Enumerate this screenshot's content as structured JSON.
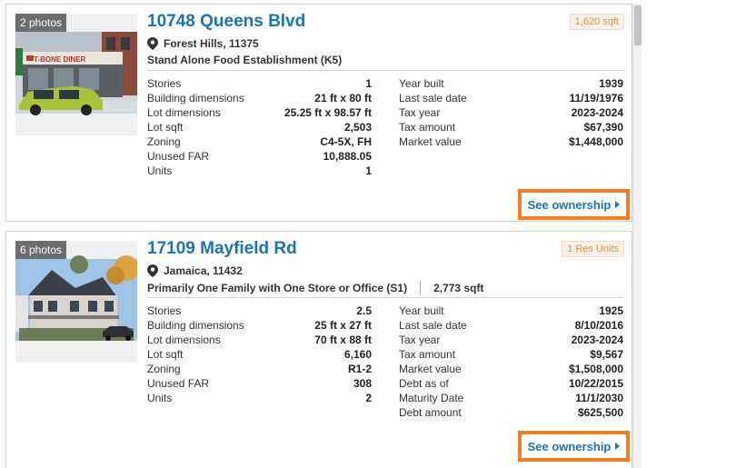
{
  "listings": [
    {
      "photo_count": "2 photos",
      "title": "10748 Queens Blvd",
      "badge": "1,620 sqft",
      "location": "Forest Hills, 11375",
      "use": "Stand Alone Food Establishment (K5)",
      "area": "",
      "left_facts": [
        {
          "label": "Stories",
          "value": "1"
        },
        {
          "label": "Building dimensions",
          "value": "21 ft x 80 ft"
        },
        {
          "label": "Lot dimensions",
          "value": "25.25 ft x 98.57 ft"
        },
        {
          "label": "Lot sqft",
          "value": "2,503"
        },
        {
          "label": "Zoning",
          "value": "C4-5X, FH"
        },
        {
          "label": "Unused FAR",
          "value": "10,888.05"
        },
        {
          "label": "Units",
          "value": "1"
        }
      ],
      "right_facts": [
        {
          "label": "Year built",
          "value": "1939"
        },
        {
          "label": "Last sale date",
          "value": "11/19/1976"
        },
        {
          "label": "Tax year",
          "value": "2023-2024"
        },
        {
          "label": "Tax amount",
          "value": "$67,390"
        },
        {
          "label": "Market value",
          "value": "$1,448,000"
        }
      ],
      "button_label": "See ownership",
      "sign_text": "T-BONE DINER"
    },
    {
      "photo_count": "6 photos",
      "title": "17109 Mayfield Rd",
      "badge": "1 Res Units",
      "location": "Jamaica, 11432",
      "use": "Primarily One Family with One Store or Office (S1)",
      "area": "2,773 sqft",
      "left_facts": [
        {
          "label": "Stories",
          "value": "2.5"
        },
        {
          "label": "Building dimensions",
          "value": "25 ft x 27 ft"
        },
        {
          "label": "Lot dimensions",
          "value": "70 ft x 88 ft"
        },
        {
          "label": "Lot sqft",
          "value": "6,160"
        },
        {
          "label": "Zoning",
          "value": "R1-2"
        },
        {
          "label": "Unused FAR",
          "value": "308"
        },
        {
          "label": "Units",
          "value": "2"
        }
      ],
      "right_facts": [
        {
          "label": "Year built",
          "value": "1925"
        },
        {
          "label": "Last sale date",
          "value": "8/10/2016"
        },
        {
          "label": "Tax year",
          "value": "2023-2024"
        },
        {
          "label": "Tax amount",
          "value": "$9,567"
        },
        {
          "label": "Market value",
          "value": "$1,508,000"
        },
        {
          "label": "Debt as of",
          "value": "10/22/2015"
        },
        {
          "label": "Maturity Date",
          "value": "11/1/2030"
        },
        {
          "label": "Debt amount",
          "value": "$625,500"
        }
      ],
      "button_label": "See ownership"
    }
  ],
  "colors": {
    "title": "#1a75b5",
    "button_border": "#f57f20",
    "badge_text": "#e8903c"
  },
  "icons": {
    "location": "map-pin-icon",
    "button_arrow": "caret-right-icon"
  }
}
